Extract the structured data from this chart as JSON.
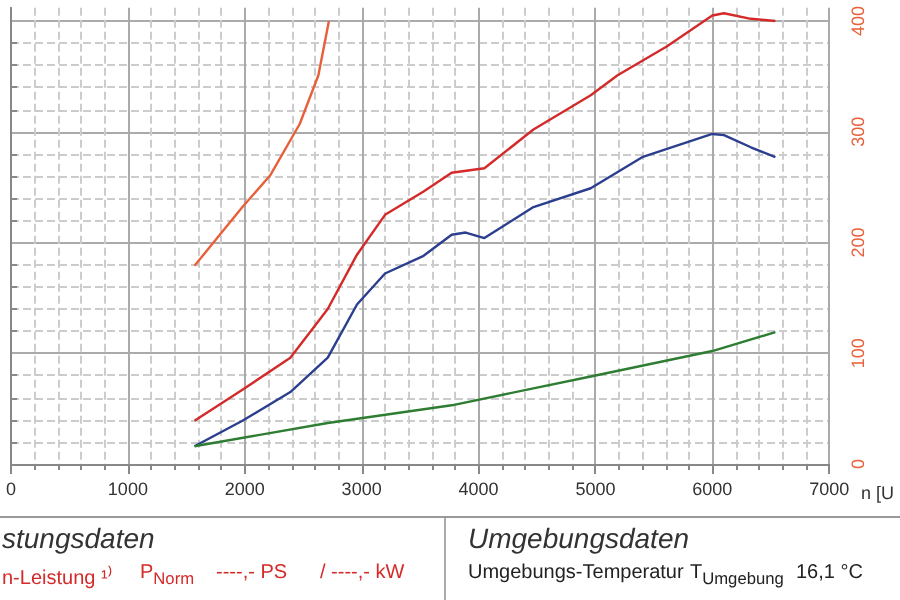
{
  "chart_data": {
    "type": "line",
    "xlabel": "n [U",
    "xlim": [
      0,
      7000
    ],
    "xticks": [
      {
        "value": 0,
        "label": "0"
      },
      1000,
      2000,
      3000,
      4000,
      5000,
      6000,
      7000
    ],
    "ylim": [
      0,
      412
    ],
    "yticks": [
      0,
      100,
      200,
      300,
      400
    ],
    "grid": true,
    "marker": "none",
    "line_style": "solid",
    "series": [
      {
        "color": "#e8603a",
        "x": [
          1570,
          1980,
          2220,
          2470,
          2630,
          2720
        ],
        "values": [
          179,
          232,
          261,
          307,
          351,
          400
        ]
      },
      {
        "color": "#d42a2a",
        "x": [
          1570,
          1980,
          2390,
          2710,
          2960,
          3200,
          3530,
          3770,
          4050,
          4470,
          4960,
          5190,
          5610,
          6000,
          6100,
          6330,
          6540
        ],
        "values": [
          39,
          67,
          96,
          140,
          189,
          225,
          246,
          263,
          267,
          302,
          333,
          351,
          377,
          405,
          407,
          402,
          400
        ]
      },
      {
        "color": "#2c3f8f",
        "x": [
          1570,
          1980,
          2390,
          2710,
          2960,
          3200,
          3530,
          3770,
          3890,
          4050,
          4470,
          4960,
          5400,
          6000,
          6100,
          6330,
          6540
        ],
        "values": [
          16,
          39,
          65,
          96,
          144,
          172,
          188,
          207,
          209,
          204,
          232,
          249,
          277,
          298,
          297,
          286,
          277
        ]
      },
      {
        "color": "#2e7d32",
        "x": [
          1570,
          2710,
          3770,
          4960,
          6000,
          6540
        ],
        "values": [
          16,
          37,
          53,
          79,
          102,
          119
        ]
      }
    ],
    "annotations": [
      "stungsdaten",
      "n-Leistung ¹⁾",
      "P$_{Norm}$",
      "----,- PS",
      "/ ----,- kW",
      "Umgebungsdaten",
      "Umgebungs-Temperatur",
      "T$_{Umgebung}$",
      "16,1 °C"
    ]
  }
}
